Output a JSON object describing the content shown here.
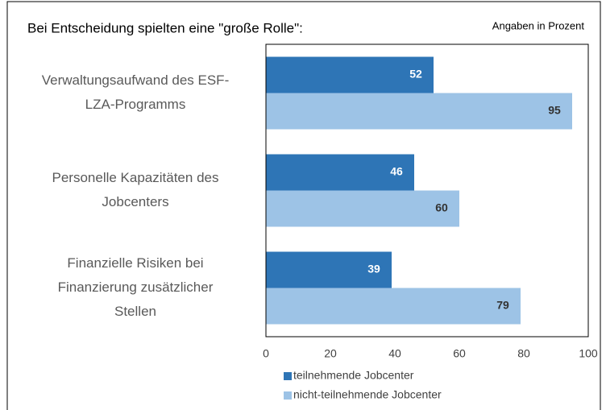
{
  "chart_data": {
    "type": "hbar",
    "title": "Bei Entscheidung spielten eine \"große Rolle\":",
    "subtitle": "Angaben in Prozent",
    "categories": [
      [
        "Verwaltungsaufwand des ESF-",
        "LZA-Programms"
      ],
      [
        "Personelle Kapazitäten des",
        "Jobcenters"
      ],
      [
        "Finanzielle Risiken bei",
        "Finanzierung zusätzlicher",
        "Stellen"
      ]
    ],
    "series": [
      {
        "name": "teilnehmende Jobcenter",
        "color": "#2e75b6",
        "values": [
          52,
          46,
          39
        ]
      },
      {
        "name": "nicht-teilnehmende Jobcenter",
        "color": "#9dc3e6",
        "values": [
          95,
          60,
          79
        ]
      }
    ],
    "xlim": [
      0,
      100
    ],
    "xticks": [
      0,
      20,
      40,
      60,
      80,
      100
    ]
  }
}
